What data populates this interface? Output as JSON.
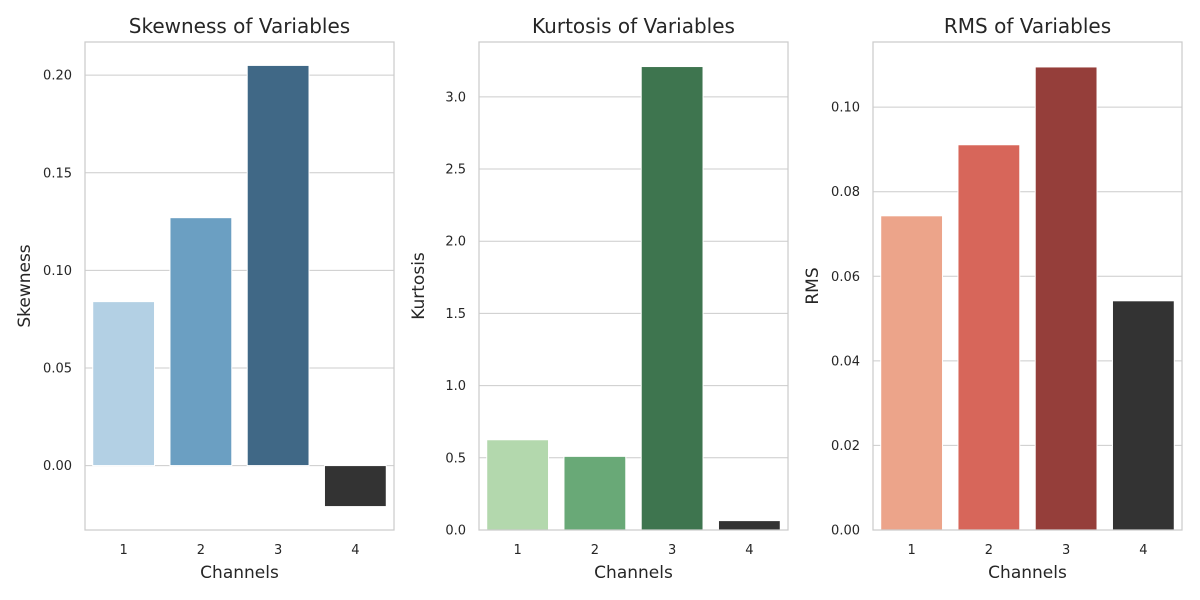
{
  "chart_data": [
    {
      "type": "bar",
      "title": "Skewness of Variables",
      "xlabel": "Channels",
      "ylabel": "Skewness",
      "categories": [
        "1",
        "2",
        "3",
        "4"
      ],
      "values": [
        0.084,
        0.127,
        0.205,
        -0.021
      ],
      "colors": [
        "#b3d0e4",
        "#6b9fc2",
        "#406886",
        "#333333"
      ],
      "ylim": [
        -0.033,
        0.217
      ],
      "yticks": [
        0.0,
        0.05,
        0.1,
        0.15,
        0.2
      ],
      "ytick_labels": [
        "0.00",
        "0.05",
        "0.10",
        "0.15",
        "0.20"
      ],
      "grid": "horizontal"
    },
    {
      "type": "bar",
      "title": "Kurtosis of Variables",
      "xlabel": "Channels",
      "ylabel": "Kurtosis",
      "categories": [
        "1",
        "2",
        "3",
        "4"
      ],
      "values": [
        0.625,
        0.51,
        3.21,
        0.065
      ],
      "colors": [
        "#b3d8ad",
        "#69a977",
        "#3e754f",
        "#333333"
      ],
      "ylim": [
        0,
        3.38
      ],
      "yticks": [
        0.0,
        0.5,
        1.0,
        1.5,
        2.0,
        2.5,
        3.0
      ],
      "ytick_labels": [
        "0.0",
        "0.5",
        "1.0",
        "1.5",
        "2.0",
        "2.5",
        "3.0"
      ],
      "grid": "horizontal"
    },
    {
      "type": "bar",
      "title": "RMS of Variables",
      "xlabel": "Channels",
      "ylabel": "RMS",
      "categories": [
        "1",
        "2",
        "3",
        "4"
      ],
      "values": [
        0.0743,
        0.0911,
        0.1095,
        0.0542
      ],
      "colors": [
        "#eca48a",
        "#d7665a",
        "#953e3a",
        "#333333"
      ],
      "ylim": [
        0,
        0.1154
      ],
      "yticks": [
        0.0,
        0.02,
        0.04,
        0.06,
        0.08,
        0.1
      ],
      "ytick_labels": [
        "0.00",
        "0.02",
        "0.04",
        "0.06",
        "0.08",
        "0.10"
      ],
      "grid": "horizontal"
    }
  ]
}
